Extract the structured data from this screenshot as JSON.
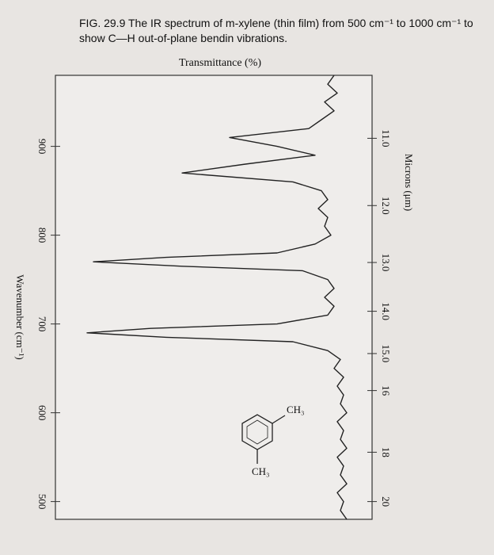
{
  "chart_data": {
    "type": "line",
    "title": "FIG. 29.9 The IR spectrum of m-xylene (thin film) from 500 cm⁻¹ to 1000 cm⁻¹ to show C—H out-of-plane bendin vibrations.",
    "x_label": "Wavenumber (cm⁻¹)",
    "x2_label": "Microns (μm)",
    "y_label": "Transmittance (%)",
    "structure_labels": [
      "CH₃",
      "CH₃"
    ],
    "xlim": [
      980,
      480
    ],
    "xticks": [
      900,
      800,
      700,
      600,
      500
    ],
    "x2ticks": [
      {
        "value": 11,
        "label": "11.0"
      },
      {
        "value": 12,
        "label": "12.0"
      },
      {
        "value": 13,
        "label": "13.0"
      },
      {
        "value": 14,
        "label": "14.0"
      },
      {
        "value": 15,
        "label": "15.0"
      },
      16,
      18,
      20
    ],
    "ylim": [
      0,
      100
    ],
    "grid": false,
    "series": [
      {
        "color": "#222222",
        "x": [
          980,
          970,
          960,
          950,
          940,
          930,
          920,
          910,
          900,
          890,
          880,
          870,
          860,
          850,
          840,
          830,
          820,
          810,
          800,
          790,
          780,
          775,
          770,
          765,
          760,
          750,
          740,
          730,
          720,
          710,
          700,
          695,
          690,
          685,
          680,
          670,
          660,
          650,
          640,
          630,
          620,
          610,
          600,
          590,
          580,
          570,
          560,
          550,
          540,
          530,
          520,
          510,
          500,
          490,
          480
        ],
        "values": [
          88,
          86,
          89,
          85,
          88,
          84,
          80,
          55,
          70,
          82,
          60,
          40,
          75,
          84,
          86,
          83,
          86,
          85,
          87,
          82,
          70,
          35,
          12,
          40,
          78,
          86,
          88,
          85,
          88,
          86,
          70,
          30,
          10,
          35,
          75,
          86,
          90,
          88,
          91,
          89,
          91,
          90,
          92,
          89,
          91,
          90,
          92,
          89,
          91,
          90,
          92,
          89,
          91,
          90,
          92
        ]
      }
    ]
  }
}
